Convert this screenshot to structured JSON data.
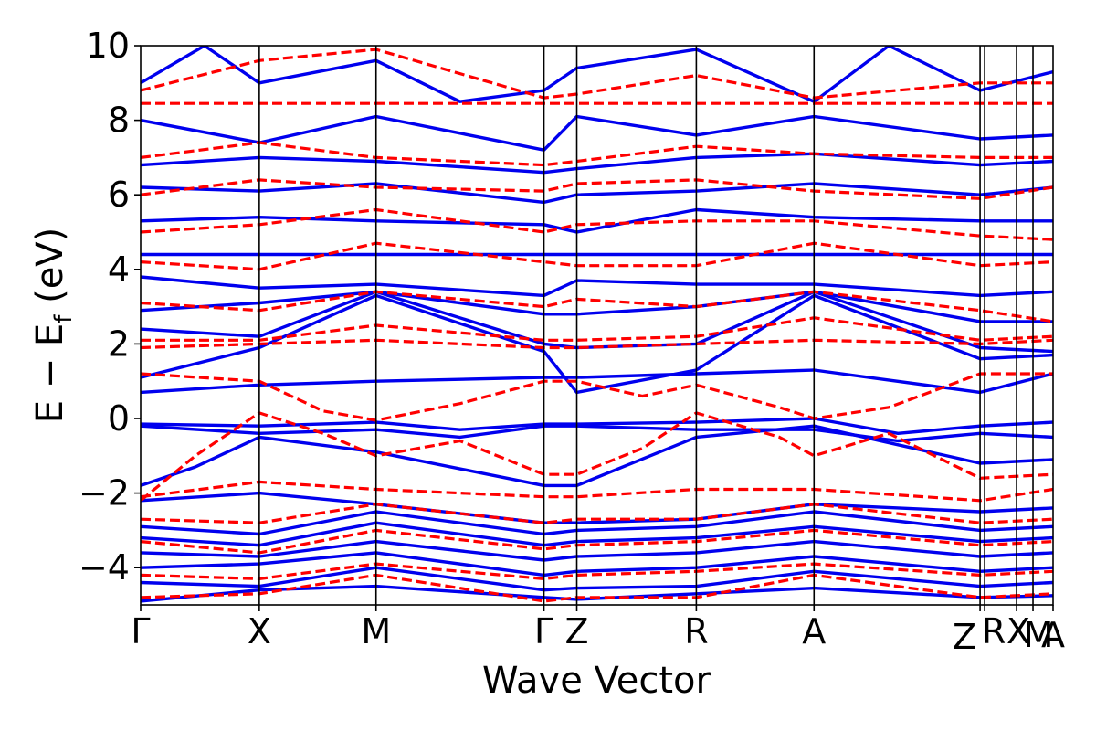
{
  "chart_data": {
    "type": "line",
    "xlabel": "Wave Vector",
    "ylabel_main": "E − E",
    "ylabel_sub": "f",
    "ylabel_unit": "(eV)",
    "ylim": [
      -5,
      10
    ],
    "yticks": [
      {
        "value": 10,
        "label": "10"
      },
      {
        "value": 8,
        "label": "8"
      },
      {
        "value": 6,
        "label": "6"
      },
      {
        "value": 4,
        "label": "4"
      },
      {
        "value": 2,
        "label": "2"
      },
      {
        "value": 0,
        "label": "0"
      },
      {
        "value": -2,
        "label": "−2"
      },
      {
        "value": -4,
        "label": "−4"
      }
    ],
    "kpoints": [
      {
        "label": "Γ",
        "k": 0.0
      },
      {
        "label": "X",
        "k": 0.13
      },
      {
        "label": "M",
        "k": 0.258
      },
      {
        "label": "Γ",
        "k": 0.442
      },
      {
        "label": "Z",
        "k": 0.478
      },
      {
        "label": "R",
        "k": 0.609
      },
      {
        "label": "A",
        "k": 0.738
      },
      {
        "label": "Z",
        "k": 0.92
      },
      {
        "label": "R",
        "k": 0.925
      },
      {
        "label": "X",
        "k": 0.96
      },
      {
        "label": "M",
        "k": 0.978
      },
      {
        "label": "A",
        "k": 1.0
      }
    ],
    "series": [
      {
        "style": "solid",
        "color": "#0000ee",
        "bands": [
          {
            "k": [
              0,
              0.13,
              0.258,
              0.442,
              0.478,
              0.609,
              0.738,
              0.92,
              1.0
            ],
            "e": [
              -4.9,
              -4.6,
              -4.5,
              -4.8,
              -4.85,
              -4.7,
              -4.55,
              -4.8,
              -4.75
            ]
          },
          {
            "k": [
              0,
              0.13,
              0.258,
              0.442,
              0.478,
              0.609,
              0.738,
              0.92,
              1.0
            ],
            "e": [
              -4.4,
              -4.5,
              -4.0,
              -4.6,
              -4.55,
              -4.5,
              -4.1,
              -4.5,
              -4.4
            ]
          },
          {
            "k": [
              0,
              0.13,
              0.258,
              0.442,
              0.478,
              0.609,
              0.738,
              0.92,
              1.0
            ],
            "e": [
              -4.0,
              -3.9,
              -3.6,
              -4.2,
              -4.1,
              -4.0,
              -3.7,
              -4.1,
              -4.0
            ]
          },
          {
            "k": [
              0,
              0.13,
              0.258,
              0.442,
              0.478,
              0.609,
              0.738,
              0.92,
              1.0
            ],
            "e": [
              -3.6,
              -3.7,
              -3.3,
              -3.8,
              -3.7,
              -3.6,
              -3.3,
              -3.7,
              -3.6
            ]
          },
          {
            "k": [
              0,
              0.13,
              0.258,
              0.442,
              0.478,
              0.609,
              0.738,
              0.92,
              1.0
            ],
            "e": [
              -3.2,
              -3.4,
              -2.8,
              -3.4,
              -3.3,
              -3.2,
              -2.9,
              -3.3,
              -3.2
            ]
          },
          {
            "k": [
              0,
              0.13,
              0.258,
              0.442,
              0.478,
              0.609,
              0.738,
              0.92,
              1.0
            ],
            "e": [
              -2.9,
              -3.1,
              -2.5,
              -3.1,
              -3.0,
              -2.9,
              -2.5,
              -3.0,
              -2.9
            ]
          },
          {
            "k": [
              0,
              0.13,
              0.258,
              0.442,
              0.478,
              0.609,
              0.738,
              0.92,
              1.0
            ],
            "e": [
              -2.2,
              -2.0,
              -2.3,
              -2.8,
              -2.8,
              -2.7,
              -2.3,
              -2.5,
              -2.4
            ]
          },
          {
            "k": [
              0,
              0.06,
              0.13,
              0.258,
              0.442,
              0.478,
              0.609,
              0.738,
              0.92,
              1.0
            ],
            "e": [
              -1.8,
              -1.3,
              -0.5,
              -0.9,
              -1.8,
              -1.8,
              -0.5,
              -0.2,
              -1.2,
              -1.1
            ]
          },
          {
            "k": [
              0,
              0.13,
              0.258,
              0.35,
              0.442,
              0.478,
              0.609,
              0.738,
              0.83,
              0.92,
              1.0
            ],
            "e": [
              -0.2,
              -0.4,
              -0.3,
              -0.5,
              -0.2,
              -0.2,
              -0.3,
              -0.3,
              -0.6,
              -0.4,
              -0.5
            ]
          },
          {
            "k": [
              0,
              0.13,
              0.258,
              0.35,
              0.442,
              0.478,
              0.609,
              0.738,
              0.83,
              0.92,
              1.0
            ],
            "e": [
              -0.15,
              -0.2,
              -0.1,
              -0.3,
              -0.15,
              -0.15,
              -0.1,
              0.0,
              -0.4,
              -0.2,
              -0.1
            ]
          },
          {
            "k": [
              0,
              0.13,
              0.258,
              0.442,
              0.478,
              0.609,
              0.738,
              0.92,
              1.0
            ],
            "e": [
              0.7,
              0.9,
              1.0,
              1.1,
              1.1,
              1.2,
              1.3,
              0.7,
              1.2
            ]
          },
          {
            "k": [
              0,
              0.13,
              0.258,
              0.442,
              0.478,
              0.609,
              0.738,
              0.92,
              1.0
            ],
            "e": [
              1.1,
              1.9,
              3.3,
              1.8,
              0.7,
              1.3,
              3.3,
              1.6,
              1.7
            ]
          },
          {
            "k": [
              0,
              0.13,
              0.258,
              0.442,
              0.478,
              0.609,
              0.738,
              0.92,
              1.0
            ],
            "e": [
              2.4,
              2.2,
              3.4,
              2.0,
              1.9,
              2.0,
              3.4,
              1.9,
              1.8
            ]
          },
          {
            "k": [
              0,
              0.13,
              0.258,
              0.442,
              0.478,
              0.609,
              0.738,
              0.92,
              1.0
            ],
            "e": [
              2.9,
              3.1,
              3.4,
              2.8,
              2.8,
              3.0,
              3.4,
              2.6,
              2.6
            ]
          },
          {
            "k": [
              0,
              0.13,
              0.258,
              0.442,
              0.478,
              0.609,
              0.738,
              0.92,
              1.0
            ],
            "e": [
              3.8,
              3.5,
              3.6,
              3.3,
              3.7,
              3.6,
              3.6,
              3.3,
              3.4
            ]
          },
          {
            "k": [
              0,
              0.13,
              0.258,
              0.442,
              0.478,
              0.609,
              0.738,
              0.92,
              1.0
            ],
            "e": [
              4.4,
              4.4,
              4.4,
              4.4,
              4.4,
              4.4,
              4.4,
              4.4,
              4.4
            ]
          },
          {
            "k": [
              0,
              0.13,
              0.258,
              0.442,
              0.478,
              0.609,
              0.738,
              0.92,
              1.0
            ],
            "e": [
              5.3,
              5.4,
              5.3,
              5.2,
              5.0,
              5.6,
              5.4,
              5.3,
              5.3
            ]
          },
          {
            "k": [
              0,
              0.13,
              0.258,
              0.442,
              0.478,
              0.609,
              0.738,
              0.92,
              1.0
            ],
            "e": [
              6.2,
              6.1,
              6.3,
              5.8,
              6.0,
              6.1,
              6.3,
              6.0,
              6.2
            ]
          },
          {
            "k": [
              0,
              0.13,
              0.258,
              0.442,
              0.478,
              0.609,
              0.738,
              0.92,
              1.0
            ],
            "e": [
              6.8,
              7.0,
              6.9,
              6.6,
              6.7,
              7.0,
              7.1,
              6.8,
              6.9
            ]
          },
          {
            "k": [
              0,
              0.13,
              0.258,
              0.442,
              0.478,
              0.609,
              0.738,
              0.92,
              1.0
            ],
            "e": [
              8.0,
              7.4,
              8.1,
              7.2,
              8.1,
              7.6,
              8.1,
              7.5,
              7.6
            ]
          },
          {
            "k": [
              0,
              0.07,
              0.13,
              0.258,
              0.35,
              0.442,
              0.478,
              0.609,
              0.738,
              0.82,
              0.92,
              1.0
            ],
            "e": [
              9.0,
              10.0,
              9.0,
              9.6,
              8.5,
              8.8,
              9.4,
              9.9,
              8.5,
              10.0,
              8.8,
              9.3
            ]
          }
        ]
      },
      {
        "style": "dashed",
        "color": "#ff0000",
        "bands": [
          {
            "k": [
              0,
              0.13,
              0.258,
              0.442,
              0.478,
              0.609,
              0.738,
              0.92,
              1.0
            ],
            "e": [
              -4.8,
              -4.7,
              -4.2,
              -4.9,
              -4.8,
              -4.8,
              -4.2,
              -4.8,
              -4.7
            ]
          },
          {
            "k": [
              0,
              0.13,
              0.258,
              0.442,
              0.478,
              0.609,
              0.738,
              0.92,
              1.0
            ],
            "e": [
              -4.2,
              -4.3,
              -3.9,
              -4.3,
              -4.2,
              -4.1,
              -3.9,
              -4.2,
              -4.1
            ]
          },
          {
            "k": [
              0,
              0.13,
              0.258,
              0.442,
              0.478,
              0.609,
              0.738,
              0.92,
              1.0
            ],
            "e": [
              -3.3,
              -3.6,
              -3.0,
              -3.5,
              -3.4,
              -3.3,
              -3.0,
              -3.4,
              -3.3
            ]
          },
          {
            "k": [
              0,
              0.13,
              0.258,
              0.442,
              0.478,
              0.609,
              0.738,
              0.92,
              1.0
            ],
            "e": [
              -2.7,
              -2.8,
              -2.3,
              -2.8,
              -2.7,
              -2.7,
              -2.3,
              -2.8,
              -2.7
            ]
          },
          {
            "k": [
              0,
              0.13,
              0.258,
              0.442,
              0.478,
              0.609,
              0.738,
              0.92,
              1.0
            ],
            "e": [
              -2.1,
              -1.7,
              -1.9,
              -2.1,
              -2.1,
              -1.9,
              -1.9,
              -2.2,
              -1.9
            ]
          },
          {
            "k": [
              0,
              0.06,
              0.13,
              0.2,
              0.258,
              0.35,
              0.442,
              0.478,
              0.55,
              0.609,
              0.7,
              0.738,
              0.82,
              0.92,
              1.0
            ],
            "e": [
              -2.2,
              -1.0,
              0.15,
              -0.4,
              -1.0,
              -0.6,
              -1.5,
              -1.5,
              -0.8,
              0.15,
              -0.5,
              -1.0,
              -0.4,
              -1.6,
              -1.5
            ]
          },
          {
            "k": [
              0,
              0.13,
              0.2,
              0.258,
              0.35,
              0.442,
              0.478,
              0.55,
              0.609,
              0.7,
              0.738,
              0.82,
              0.92,
              1.0
            ],
            "e": [
              1.2,
              1.0,
              0.2,
              -0.05,
              0.4,
              1.0,
              1.0,
              0.6,
              0.9,
              0.3,
              0.0,
              0.3,
              1.2,
              1.2
            ]
          },
          {
            "k": [
              0,
              0.13,
              0.258,
              0.442,
              0.478,
              0.609,
              0.738,
              0.92,
              1.0
            ],
            "e": [
              1.9,
              2.0,
              2.1,
              1.9,
              1.9,
              2.0,
              2.1,
              2.0,
              2.1
            ]
          },
          {
            "k": [
              0,
              0.13,
              0.258,
              0.442,
              0.478,
              0.609,
              0.738,
              0.92,
              1.0
            ],
            "e": [
              2.1,
              2.1,
              2.5,
              2.1,
              2.1,
              2.2,
              2.7,
              2.1,
              2.2
            ]
          },
          {
            "k": [
              0,
              0.13,
              0.258,
              0.442,
              0.478,
              0.609,
              0.738,
              0.92,
              1.0
            ],
            "e": [
              3.1,
              2.9,
              3.4,
              3.0,
              3.2,
              3.0,
              3.4,
              2.9,
              2.6
            ]
          },
          {
            "k": [
              0,
              0.13,
              0.258,
              0.442,
              0.478,
              0.609,
              0.738,
              0.92,
              1.0
            ],
            "e": [
              4.2,
              4.0,
              4.7,
              4.2,
              4.1,
              4.1,
              4.7,
              4.1,
              4.2
            ]
          },
          {
            "k": [
              0,
              0.13,
              0.258,
              0.442,
              0.478,
              0.609,
              0.738,
              0.92,
              1.0
            ],
            "e": [
              5.0,
              5.2,
              5.6,
              5.0,
              5.2,
              5.3,
              5.3,
              4.9,
              4.8
            ]
          },
          {
            "k": [
              0,
              0.13,
              0.258,
              0.442,
              0.478,
              0.609,
              0.738,
              0.92,
              1.0
            ],
            "e": [
              6.0,
              6.4,
              6.2,
              6.1,
              6.3,
              6.4,
              6.1,
              5.9,
              6.2
            ]
          },
          {
            "k": [
              0,
              0.13,
              0.258,
              0.442,
              0.478,
              0.609,
              0.738,
              0.92,
              1.0
            ],
            "e": [
              7.0,
              7.4,
              7.0,
              6.8,
              6.9,
              7.3,
              7.1,
              7.0,
              7.0
            ]
          },
          {
            "k": [
              0,
              1.0
            ],
            "e": [
              8.45,
              8.45
            ]
          },
          {
            "k": [
              0,
              0.13,
              0.258,
              0.442,
              0.478,
              0.609,
              0.738,
              0.92,
              1.0
            ],
            "e": [
              8.8,
              9.6,
              9.9,
              8.6,
              8.7,
              9.2,
              8.6,
              9.0,
              9.0
            ]
          }
        ]
      }
    ]
  }
}
